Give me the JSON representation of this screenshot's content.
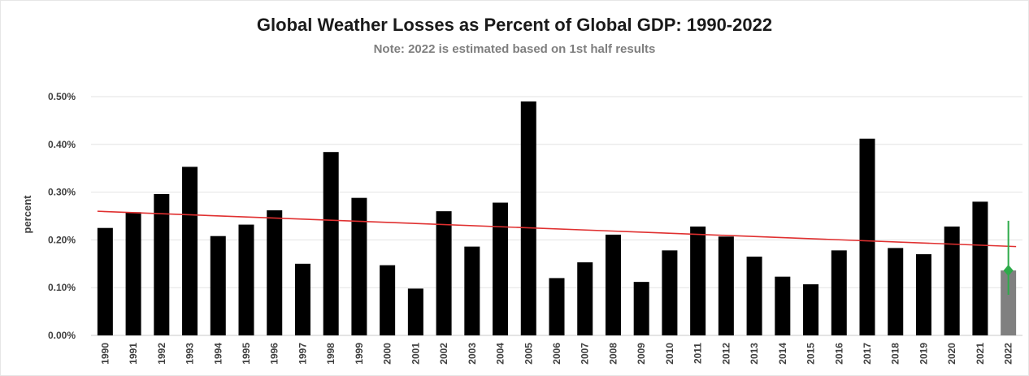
{
  "chart_data": {
    "type": "bar",
    "title": "Global Weather Losses as Percent of Global GDP: 1990-2022",
    "subtitle": "Note: 2022 is estimated based on 1st half results",
    "ylabel": "percent",
    "xlabel": "",
    "ylim": [
      0,
      0.5
    ],
    "yticks": [
      "0.00%",
      "0.10%",
      "0.20%",
      "0.30%",
      "0.40%",
      "0.50%"
    ],
    "grid": true,
    "categories": [
      "1990",
      "1991",
      "1992",
      "1993",
      "1994",
      "1995",
      "1996",
      "1997",
      "1998",
      "1999",
      "2000",
      "2001",
      "2002",
      "2003",
      "2004",
      "2005",
      "2006",
      "2007",
      "2008",
      "2009",
      "2010",
      "2011",
      "2012",
      "2013",
      "2014",
      "2015",
      "2016",
      "2017",
      "2018",
      "2019",
      "2020",
      "2021",
      "2022"
    ],
    "values": [
      0.225,
      0.258,
      0.296,
      0.353,
      0.208,
      0.232,
      0.262,
      0.15,
      0.384,
      0.288,
      0.147,
      0.098,
      0.26,
      0.186,
      0.278,
      0.49,
      0.12,
      0.153,
      0.211,
      0.112,
      0.178,
      0.228,
      0.207,
      0.165,
      0.123,
      0.107,
      0.178,
      0.412,
      0.183,
      0.17,
      0.228,
      0.28,
      0.136
    ],
    "estimated_category": "2022",
    "trendline": {
      "start": 0.26,
      "end": 0.186,
      "color": "#e03030"
    },
    "error_bar": {
      "category": "2022",
      "low": 0.085,
      "high": 0.24,
      "point": 0.136,
      "color": "#2eaa4a"
    },
    "colors": {
      "bar": "#000000",
      "estimated_bar": "#808080",
      "grid": "#e3e3e3"
    }
  }
}
